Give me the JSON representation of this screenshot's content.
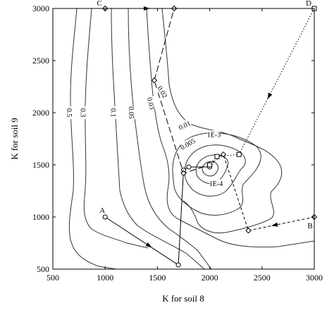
{
  "chart_data": {
    "type": "contour",
    "xlabel": "K for soil 8",
    "ylabel": "K for soil 9",
    "xlim": [
      500,
      3000
    ],
    "ylim": [
      500,
      3000
    ],
    "x_ticks": [
      "500",
      "1000",
      "1500",
      "2000",
      "2500",
      "3000"
    ],
    "y_ticks": [
      "500",
      "1000",
      "1500",
      "2000",
      "2500",
      "3000"
    ],
    "contour_labels": [
      {
        "text": "0.5",
        "x": 660,
        "y": 2000
      },
      {
        "text": "0.3",
        "x": 790,
        "y": 2000
      },
      {
        "text": "0.1",
        "x": 1080,
        "y": 2000
      },
      {
        "text": "0.05",
        "x": 1250,
        "y": 2000
      },
      {
        "text": "0.03",
        "x": 1440,
        "y": 2090
      },
      {
        "text": "0.02",
        "x": 1550,
        "y": 2200
      },
      {
        "text": "0.01",
        "x": 1760,
        "y": 1880
      },
      {
        "text": "0.005",
        "x": 1790,
        "y": 1700
      },
      {
        "text": "1E-3",
        "x": 2040,
        "y": 1790
      },
      {
        "text": "1E-4",
        "x": 2060,
        "y": 1320
      }
    ],
    "start_points": [
      {
        "label": "A",
        "x": 1000,
        "y": 1000
      },
      {
        "label": "B",
        "x": 3000,
        "y": 1000
      },
      {
        "label": "C",
        "x": 1000,
        "y": 3000
      },
      {
        "label": "D",
        "x": 3000,
        "y": 3000
      }
    ],
    "paths": [
      {
        "start": "A",
        "style": "solid",
        "points": [
          [
            1000,
            1000
          ],
          [
            1700,
            540
          ],
          [
            1750,
            1450
          ],
          [
            1800,
            1480
          ],
          [
            2000,
            1480
          ]
        ]
      },
      {
        "start": "B",
        "style": "dashed",
        "points": [
          [
            3000,
            1000
          ],
          [
            2370,
            870
          ],
          [
            2130,
            1600
          ],
          [
            2000,
            1500
          ]
        ]
      },
      {
        "start": "C",
        "style": "longdash",
        "points": [
          [
            1000,
            3000
          ],
          [
            1660,
            3000
          ],
          [
            1470,
            2310
          ],
          [
            1750,
            1420
          ],
          [
            2000,
            1500
          ]
        ]
      },
      {
        "start": "D",
        "style": "dotted",
        "points": [
          [
            3000,
            3000
          ],
          [
            2280,
            1600
          ],
          [
            2070,
            1580
          ],
          [
            2000,
            1500
          ]
        ]
      }
    ]
  }
}
